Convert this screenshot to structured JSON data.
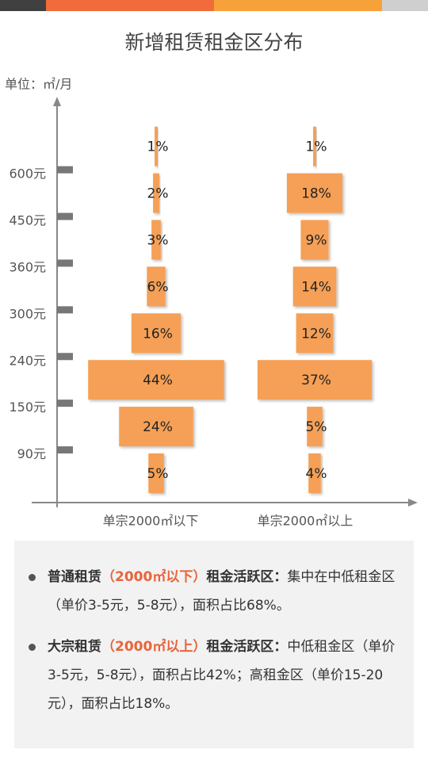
{
  "chart_data": {
    "type": "bar",
    "title": "新增租赁租金区分布",
    "unit_label": "单位：㎡/月",
    "categories": [
      null,
      null,
      null,
      null,
      null,
      null,
      null,
      null
    ],
    "band_edges": [
      {
        "value": 90,
        "label": "90元"
      },
      {
        "value": 150,
        "label": "150元"
      },
      {
        "value": 240,
        "label": "240元"
      },
      {
        "value": 300,
        "label": "300元"
      },
      {
        "value": 360,
        "label": "360元"
      },
      {
        "value": 450,
        "label": "450元"
      },
      {
        "value": 600,
        "label": "600元"
      }
    ],
    "color": "#f5a057",
    "series": [
      {
        "name": "单宗2000㎡以下",
        "values": [
          5,
          24,
          44,
          16,
          6,
          3,
          2,
          1
        ],
        "value_labels": [
          "5%",
          "24%",
          "44%",
          "16%",
          "6%",
          "3%",
          "2%",
          "1%"
        ]
      },
      {
        "name": "单宗2000㎡以上",
        "values": [
          4,
          5,
          37,
          12,
          14,
          9,
          18,
          1
        ],
        "value_labels": [
          "4%",
          "5%",
          "37%",
          "12%",
          "14%",
          "9%",
          "18%",
          "1%"
        ]
      }
    ]
  },
  "notes": [
    {
      "term": "普通租赁",
      "qualifier": "（2000㎡以下）",
      "label": "租金活跃区：",
      "text": "集中在中低租金区（单价3-5元，5-8元），面积占比68%。"
    },
    {
      "term": "大宗租赁",
      "qualifier": "（2000㎡以上）",
      "label": "租金活跃区：",
      "text": "中低租金区（单价3-5元，5-8元），面积占比42%；高租金区（单价15-20元），面积占比18%。"
    }
  ]
}
